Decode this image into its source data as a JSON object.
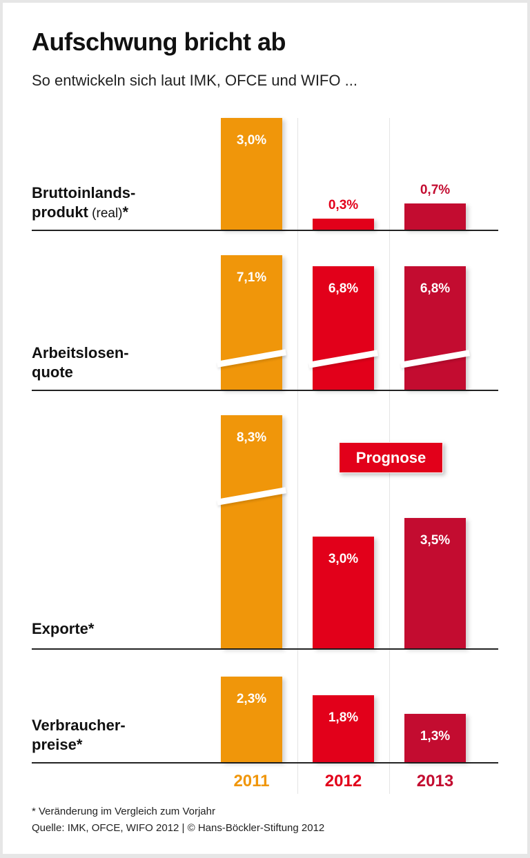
{
  "chart_data": {
    "type": "bar",
    "title": "Aufschwung bricht ab",
    "subtitle": "So entwickeln sich laut IMK, OFCE und WIFO ...",
    "categories": [
      "2011",
      "2012",
      "2013"
    ],
    "unit": "%",
    "colors": [
      "#F0960A",
      "#E2001A",
      "#C30C30"
    ],
    "forecast_label": "Prognose",
    "panels": [
      {
        "label_bold_1": "Bruttoinlands-",
        "label_bold_2": "produkt",
        "label_reg": " (real)",
        "label_star": "*",
        "values": [
          3.0,
          0.3,
          0.7
        ],
        "labels": [
          "3,0%",
          "0,3%",
          "0,7%"
        ],
        "broken_axis": [
          false,
          false,
          false
        ]
      },
      {
        "label_bold_1": "Arbeitslosen-",
        "label_bold_2": "quote",
        "label_reg": "",
        "label_star": "",
        "values": [
          7.1,
          6.8,
          6.8
        ],
        "labels": [
          "7,1%",
          "6,8%",
          "6,8%"
        ],
        "broken_axis": [
          true,
          true,
          true
        ]
      },
      {
        "label_bold_1": "",
        "label_bold_2": "Exporte",
        "label_reg": "",
        "label_star": "*",
        "values": [
          8.3,
          3.0,
          3.5
        ],
        "labels": [
          "8,3%",
          "3,0%",
          "3,5%"
        ],
        "broken_axis": [
          true,
          false,
          false
        ]
      },
      {
        "label_bold_1": "Verbraucher-",
        "label_bold_2": "preise",
        "label_reg": "",
        "label_star": "*",
        "values": [
          2.3,
          1.8,
          1.3
        ],
        "labels": [
          "2,3%",
          "1,8%",
          "1,3%"
        ],
        "broken_axis": [
          false,
          false,
          false
        ]
      }
    ],
    "footnote": "* Veränderung im Vergleich zum Vorjahr",
    "source": "Quelle: IMK, OFCE, WIFO 2012 | © Hans-Böckler-Stiftung 2012"
  }
}
